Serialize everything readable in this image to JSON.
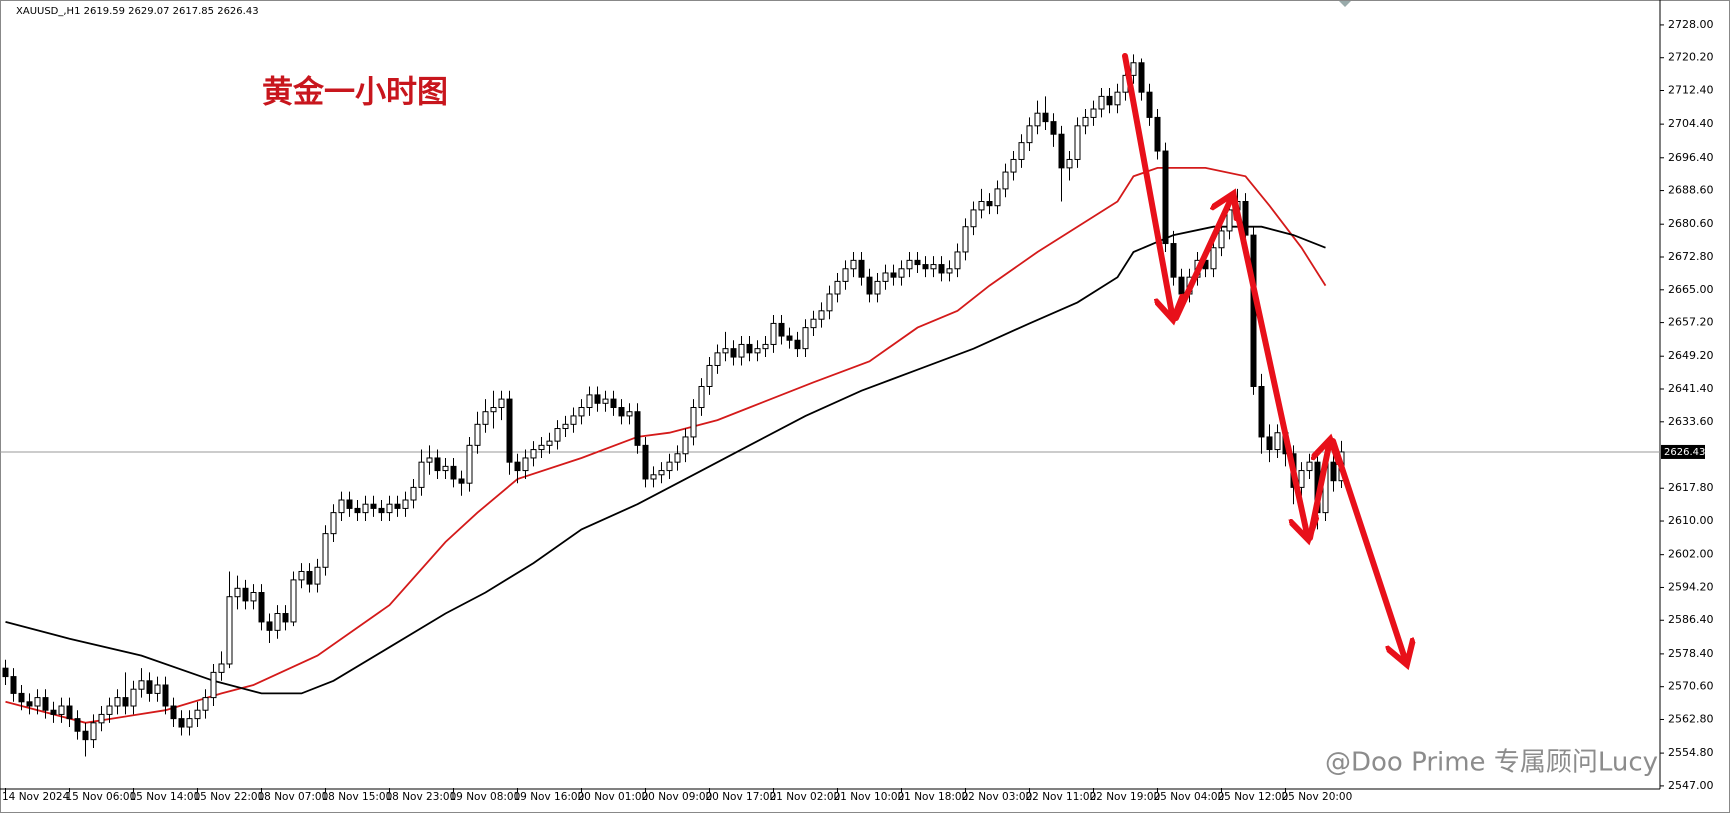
{
  "chart_data": {
    "type": "candlestick",
    "title": "XAUUSD_,H1  2619.59 2629.07 2617.85 2626.43",
    "annotation": "黄金一小时图",
    "watermark": "@Doo Prime 专属顾问Lucy",
    "categories": [
      "14 Nov 2024",
      null,
      null,
      null,
      null,
      null,
      null,
      null,
      "15 Nov 06:00",
      null,
      null,
      null,
      null,
      null,
      null,
      null,
      "15 Nov 14:00",
      null,
      null,
      null,
      null,
      null,
      null,
      null,
      "15 Nov 22:00",
      null,
      null,
      null,
      null,
      null,
      null,
      null,
      "18 Nov 07:00",
      null,
      null,
      null,
      null,
      null,
      null,
      null,
      "18 Nov 15:00",
      null,
      null,
      null,
      null,
      null,
      null,
      null,
      "18 Nov 23:00",
      null,
      null,
      null,
      null,
      null,
      null,
      null,
      "19 Nov 08:00",
      null,
      null,
      null,
      null,
      null,
      null,
      null,
      "19 Nov 16:00",
      null,
      null,
      null,
      null,
      null,
      null,
      null,
      "20 Nov 01:00",
      null,
      null,
      null,
      null,
      null,
      null,
      null,
      "20 Nov 09:00",
      null,
      null,
      null,
      null,
      null,
      null,
      null,
      "20 Nov 17:00",
      null,
      null,
      null,
      null,
      null,
      null,
      null,
      "21 Nov 02:00",
      null,
      null,
      null,
      null,
      null,
      null,
      null,
      "21 Nov 10:00",
      null,
      null,
      null,
      null,
      null,
      null,
      null,
      "21 Nov 18:00",
      null,
      null,
      null,
      null,
      null,
      null,
      null,
      "22 Nov 03:00",
      null,
      null,
      null,
      null,
      null,
      null,
      null,
      "22 Nov 11:00",
      null,
      null,
      null,
      null,
      null,
      null,
      null,
      "22 Nov 19:00",
      null,
      null,
      null,
      null,
      null,
      null,
      null,
      "25 Nov 04:00",
      null,
      null,
      null,
      null,
      null,
      null,
      null,
      "25 Nov 12:00",
      null,
      null,
      null,
      null,
      null,
      null,
      null,
      "25 Nov 20:00",
      null,
      null,
      null,
      null,
      null,
      null,
      null
    ],
    "ohlc": [
      [
        2575,
        2577,
        2571,
        2573
      ],
      [
        2573,
        2575,
        2567,
        2569
      ],
      [
        2569,
        2571,
        2565,
        2567
      ],
      [
        2567,
        2569,
        2564,
        2566
      ],
      [
        2566,
        2570,
        2564,
        2568
      ],
      [
        2568,
        2570,
        2563,
        2565
      ],
      [
        2565,
        2567,
        2562,
        2564
      ],
      [
        2564,
        2568,
        2562,
        2566
      ],
      [
        2566,
        2568,
        2561,
        2563
      ],
      [
        2563,
        2565,
        2558,
        2560
      ],
      [
        2560,
        2562,
        2554,
        2558
      ],
      [
        2558,
        2564,
        2556,
        2562
      ],
      [
        2562,
        2566,
        2560,
        2564
      ],
      [
        2564,
        2568,
        2562,
        2566
      ],
      [
        2566,
        2570,
        2564,
        2568
      ],
      [
        2568,
        2574,
        2564,
        2566
      ],
      [
        2566,
        2572,
        2564,
        2570
      ],
      [
        2570,
        2575,
        2568,
        2572
      ],
      [
        2572,
        2574,
        2567,
        2569
      ],
      [
        2569,
        2573,
        2567,
        2571
      ],
      [
        2571,
        2573,
        2564,
        2566
      ],
      [
        2566,
        2568,
        2561,
        2563
      ],
      [
        2563,
        2565,
        2559,
        2561
      ],
      [
        2561,
        2565,
        2559,
        2563
      ],
      [
        2563,
        2567,
        2561,
        2565
      ],
      [
        2565,
        2570,
        2563,
        2568
      ],
      [
        2568,
        2576,
        2566,
        2574
      ],
      [
        2574,
        2579,
        2572,
        2576
      ],
      [
        2576,
        2598,
        2575,
        2592
      ],
      [
        2592,
        2597,
        2589,
        2594
      ],
      [
        2594,
        2596,
        2589,
        2591
      ],
      [
        2591,
        2595,
        2589,
        2593
      ],
      [
        2593,
        2595,
        2584,
        2586
      ],
      [
        2586,
        2588,
        2581,
        2584
      ],
      [
        2584,
        2590,
        2582,
        2588
      ],
      [
        2588,
        2590,
        2584,
        2586
      ],
      [
        2586,
        2598,
        2585,
        2596
      ],
      [
        2596,
        2600,
        2594,
        2598
      ],
      [
        2598,
        2600,
        2593,
        2595
      ],
      [
        2595,
        2601,
        2593,
        2599
      ],
      [
        2599,
        2609,
        2597,
        2607
      ],
      [
        2607,
        2614,
        2605,
        2612
      ],
      [
        2612,
        2617,
        2610,
        2615
      ],
      [
        2615,
        2617,
        2611,
        2613
      ],
      [
        2613,
        2615,
        2610,
        2612
      ],
      [
        2612,
        2616,
        2610,
        2614
      ],
      [
        2614,
        2616,
        2611,
        2613
      ],
      [
        2613,
        2615,
        2610,
        2612
      ],
      [
        2612,
        2616,
        2610,
        2614
      ],
      [
        2614,
        2616,
        2611,
        2613
      ],
      [
        2613,
        2617,
        2611,
        2615
      ],
      [
        2615,
        2620,
        2613,
        2618
      ],
      [
        2618,
        2627,
        2616,
        2624
      ],
      [
        2624,
        2628,
        2621,
        2625
      ],
      [
        2625,
        2627,
        2620,
        2622
      ],
      [
        2622,
        2625,
        2620,
        2623
      ],
      [
        2623,
        2625,
        2618,
        2620
      ],
      [
        2620,
        2622,
        2616,
        2619
      ],
      [
        2619,
        2630,
        2617,
        2628
      ],
      [
        2628,
        2636,
        2626,
        2633
      ],
      [
        2633,
        2639,
        2631,
        2636
      ],
      [
        2636,
        2641,
        2632,
        2637
      ],
      [
        2637,
        2641,
        2634,
        2639
      ],
      [
        2639,
        2641,
        2621,
        2624
      ],
      [
        2624,
        2626,
        2619,
        2622
      ],
      [
        2622,
        2627,
        2620,
        2625
      ],
      [
        2625,
        2629,
        2623,
        2627
      ],
      [
        2627,
        2630,
        2625,
        2628
      ],
      [
        2628,
        2631,
        2626,
        2629
      ],
      [
        2629,
        2634,
        2627,
        2632
      ],
      [
        2632,
        2635,
        2630,
        2633
      ],
      [
        2633,
        2637,
        2631,
        2635
      ],
      [
        2635,
        2639,
        2633,
        2637
      ],
      [
        2637,
        2642,
        2635,
        2640
      ],
      [
        2640,
        2642,
        2636,
        2638
      ],
      [
        2638,
        2641,
        2636,
        2639
      ],
      [
        2639,
        2641,
        2635,
        2637
      ],
      [
        2637,
        2639,
        2633,
        2635
      ],
      [
        2635,
        2638,
        2633,
        2636
      ],
      [
        2636,
        2638,
        2626,
        2628
      ],
      [
        2628,
        2630,
        2618,
        2620
      ],
      [
        2620,
        2623,
        2618,
        2621
      ],
      [
        2621,
        2624,
        2619,
        2622
      ],
      [
        2622,
        2626,
        2620,
        2624
      ],
      [
        2624,
        2628,
        2622,
        2626
      ],
      [
        2626,
        2632,
        2624,
        2630
      ],
      [
        2630,
        2639,
        2628,
        2637
      ],
      [
        2637,
        2644,
        2635,
        2642
      ],
      [
        2642,
        2649,
        2640,
        2647
      ],
      [
        2647,
        2652,
        2645,
        2650
      ],
      [
        2650,
        2655,
        2648,
        2651
      ],
      [
        2651,
        2653,
        2647,
        2649
      ],
      [
        2649,
        2654,
        2647,
        2652
      ],
      [
        2652,
        2654,
        2648,
        2650
      ],
      [
        2650,
        2653,
        2648,
        2651
      ],
      [
        2651,
        2654,
        2649,
        2652
      ],
      [
        2652,
        2659,
        2650,
        2657
      ],
      [
        2657,
        2659,
        2652,
        2654
      ],
      [
        2654,
        2656,
        2651,
        2653
      ],
      [
        2653,
        2655,
        2649,
        2651
      ],
      [
        2651,
        2658,
        2649,
        2656
      ],
      [
        2656,
        2660,
        2654,
        2658
      ],
      [
        2658,
        2662,
        2656,
        2660
      ],
      [
        2660,
        2666,
        2658,
        2664
      ],
      [
        2664,
        2669,
        2662,
        2667
      ],
      [
        2667,
        2672,
        2665,
        2670
      ],
      [
        2670,
        2674,
        2668,
        2672
      ],
      [
        2672,
        2674,
        2666,
        2668
      ],
      [
        2668,
        2670,
        2662,
        2664
      ],
      [
        2664,
        2669,
        2662,
        2667
      ],
      [
        2667,
        2671,
        2665,
        2669
      ],
      [
        2669,
        2671,
        2666,
        2668
      ],
      [
        2668,
        2672,
        2666,
        2670
      ],
      [
        2670,
        2674,
        2668,
        2672
      ],
      [
        2672,
        2674,
        2669,
        2671
      ],
      [
        2671,
        2673,
        2668,
        2670
      ],
      [
        2670,
        2673,
        2668,
        2671
      ],
      [
        2671,
        2673,
        2667,
        2669
      ],
      [
        2669,
        2672,
        2667,
        2670
      ],
      [
        2670,
        2676,
        2668,
        2674
      ],
      [
        2674,
        2682,
        2672,
        2680
      ],
      [
        2680,
        2686,
        2678,
        2684
      ],
      [
        2684,
        2689,
        2682,
        2686
      ],
      [
        2686,
        2688,
        2683,
        2685
      ],
      [
        2685,
        2691,
        2683,
        2689
      ],
      [
        2689,
        2695,
        2687,
        2693
      ],
      [
        2693,
        2698,
        2691,
        2696
      ],
      [
        2696,
        2702,
        2694,
        2700
      ],
      [
        2700,
        2706,
        2698,
        2704
      ],
      [
        2704,
        2710,
        2702,
        2707
      ],
      [
        2707,
        2711,
        2703,
        2705
      ],
      [
        2705,
        2707,
        2699,
        2702
      ],
      [
        2702,
        2704,
        2686,
        2694
      ],
      [
        2694,
        2698,
        2691,
        2696
      ],
      [
        2696,
        2706,
        2694,
        2704
      ],
      [
        2704,
        2708,
        2702,
        2706
      ],
      [
        2706,
        2710,
        2704,
        2708
      ],
      [
        2708,
        2713,
        2706,
        2711
      ],
      [
        2711,
        2713,
        2707,
        2709
      ],
      [
        2709,
        2714,
        2707,
        2712
      ],
      [
        2712,
        2718,
        2710,
        2716
      ],
      [
        2716,
        2721,
        2714,
        2719
      ],
      [
        2719,
        2720,
        2710,
        2712
      ],
      [
        2712,
        2714,
        2704,
        2706
      ],
      [
        2706,
        2708,
        2696,
        2698
      ],
      [
        2698,
        2700,
        2674,
        2676
      ],
      [
        2676,
        2679,
        2666,
        2668
      ],
      [
        2668,
        2670,
        2660,
        2664
      ],
      [
        2664,
        2670,
        2662,
        2668
      ],
      [
        2668,
        2674,
        2666,
        2672
      ],
      [
        2672,
        2674,
        2668,
        2670
      ],
      [
        2670,
        2677,
        2668,
        2675
      ],
      [
        2675,
        2681,
        2673,
        2679
      ],
      [
        2679,
        2686,
        2677,
        2684
      ],
      [
        2684,
        2689,
        2682,
        2686
      ],
      [
        2686,
        2688,
        2676,
        2678
      ],
      [
        2678,
        2680,
        2640,
        2642
      ],
      [
        2642,
        2645,
        2626,
        2630
      ],
      [
        2630,
        2633,
        2624,
        2627
      ],
      [
        2627,
        2633,
        2625,
        2631
      ],
      [
        2631,
        2633,
        2623,
        2626
      ],
      [
        2626,
        2628,
        2614,
        2618
      ],
      [
        2618,
        2624,
        2616,
        2622
      ],
      [
        2622,
        2626,
        2620,
        2624
      ],
      [
        2624,
        2626,
        2608,
        2612
      ],
      [
        2612,
        2627,
        2610,
        2624
      ],
      [
        2624,
        2626,
        2617,
        2619.59
      ],
      [
        2619.59,
        2629.07,
        2617.85,
        2626.43
      ]
    ],
    "lines": [
      {
        "color": "#d41a1a",
        "x": [
          0,
          10,
          20,
          27,
          31,
          39,
          48,
          55,
          59,
          64,
          72,
          79,
          83,
          89,
          93,
          101,
          108,
          114,
          119,
          123,
          129,
          134,
          139,
          141,
          144,
          150,
          155,
          158,
          162,
          165
        ],
        "values": [
          2567,
          2562,
          2565,
          2569,
          2571,
          2578,
          2590,
          2605,
          2612,
          2620,
          2625,
          2630,
          2631,
          2634,
          2637,
          2643,
          2648,
          2656,
          2660,
          2666,
          2674,
          2680,
          2686,
          2692,
          2694,
          2694,
          2692,
          2685,
          2675,
          2666
        ]
      },
      {
        "color": "#000000",
        "x": [
          0,
          8,
          17,
          26,
          32,
          37,
          41,
          48,
          55,
          60,
          66,
          72,
          79,
          86,
          93,
          100,
          107,
          114,
          121,
          128,
          134,
          139,
          141,
          146,
          151,
          157,
          161,
          165
        ],
        "values": [
          2586,
          2582,
          2578,
          2572,
          2569,
          2569,
          2572,
          2580,
          2588,
          2593,
          2600,
          2608,
          2614,
          2621,
          2628,
          2635,
          2641,
          2646,
          2651,
          2657,
          2662,
          2668,
          2674,
          2678,
          2680,
          2680,
          2678,
          2675
        ]
      }
    ],
    "last_price": 2626.43,
    "ylim": [
      2546.5,
      2732.5
    ],
    "yticks": [
      {
        "value": 2728,
        "label": "2728.00"
      },
      {
        "value": 2720.2,
        "label": "2720.20"
      },
      {
        "value": 2712.4,
        "label": "2712.40"
      },
      {
        "value": 2704.4,
        "label": "2704.40"
      },
      {
        "value": 2696.4,
        "label": "2696.40"
      },
      {
        "value": 2688.6,
        "label": "2688.60"
      },
      {
        "value": 2680.6,
        "label": "2680.60"
      },
      {
        "value": 2672.8,
        "label": "2672.80"
      },
      {
        "value": 2665,
        "label": "2665.00"
      },
      {
        "value": 2657.2,
        "label": "2657.20"
      },
      {
        "value": 2649.2,
        "label": "2649.20"
      },
      {
        "value": 2641.4,
        "label": "2641.40"
      },
      {
        "value": 2633.6,
        "label": "2633.60"
      },
      {
        "value": 2617.8,
        "label": "2617.80"
      },
      {
        "value": 2610,
        "label": "2610.00"
      },
      {
        "value": 2602,
        "label": "2602.00"
      },
      {
        "value": 2594.2,
        "label": "2594.20"
      },
      {
        "value": 2586.4,
        "label": "2586.40"
      },
      {
        "value": 2578.4,
        "label": "2578.40"
      },
      {
        "value": 2570.6,
        "label": "2570.60"
      },
      {
        "value": 2562.8,
        "label": "2562.80"
      },
      {
        "value": 2554.8,
        "label": "2554.80"
      },
      {
        "value": 2547,
        "label": "2547.00"
      }
    ],
    "grid": false
  }
}
